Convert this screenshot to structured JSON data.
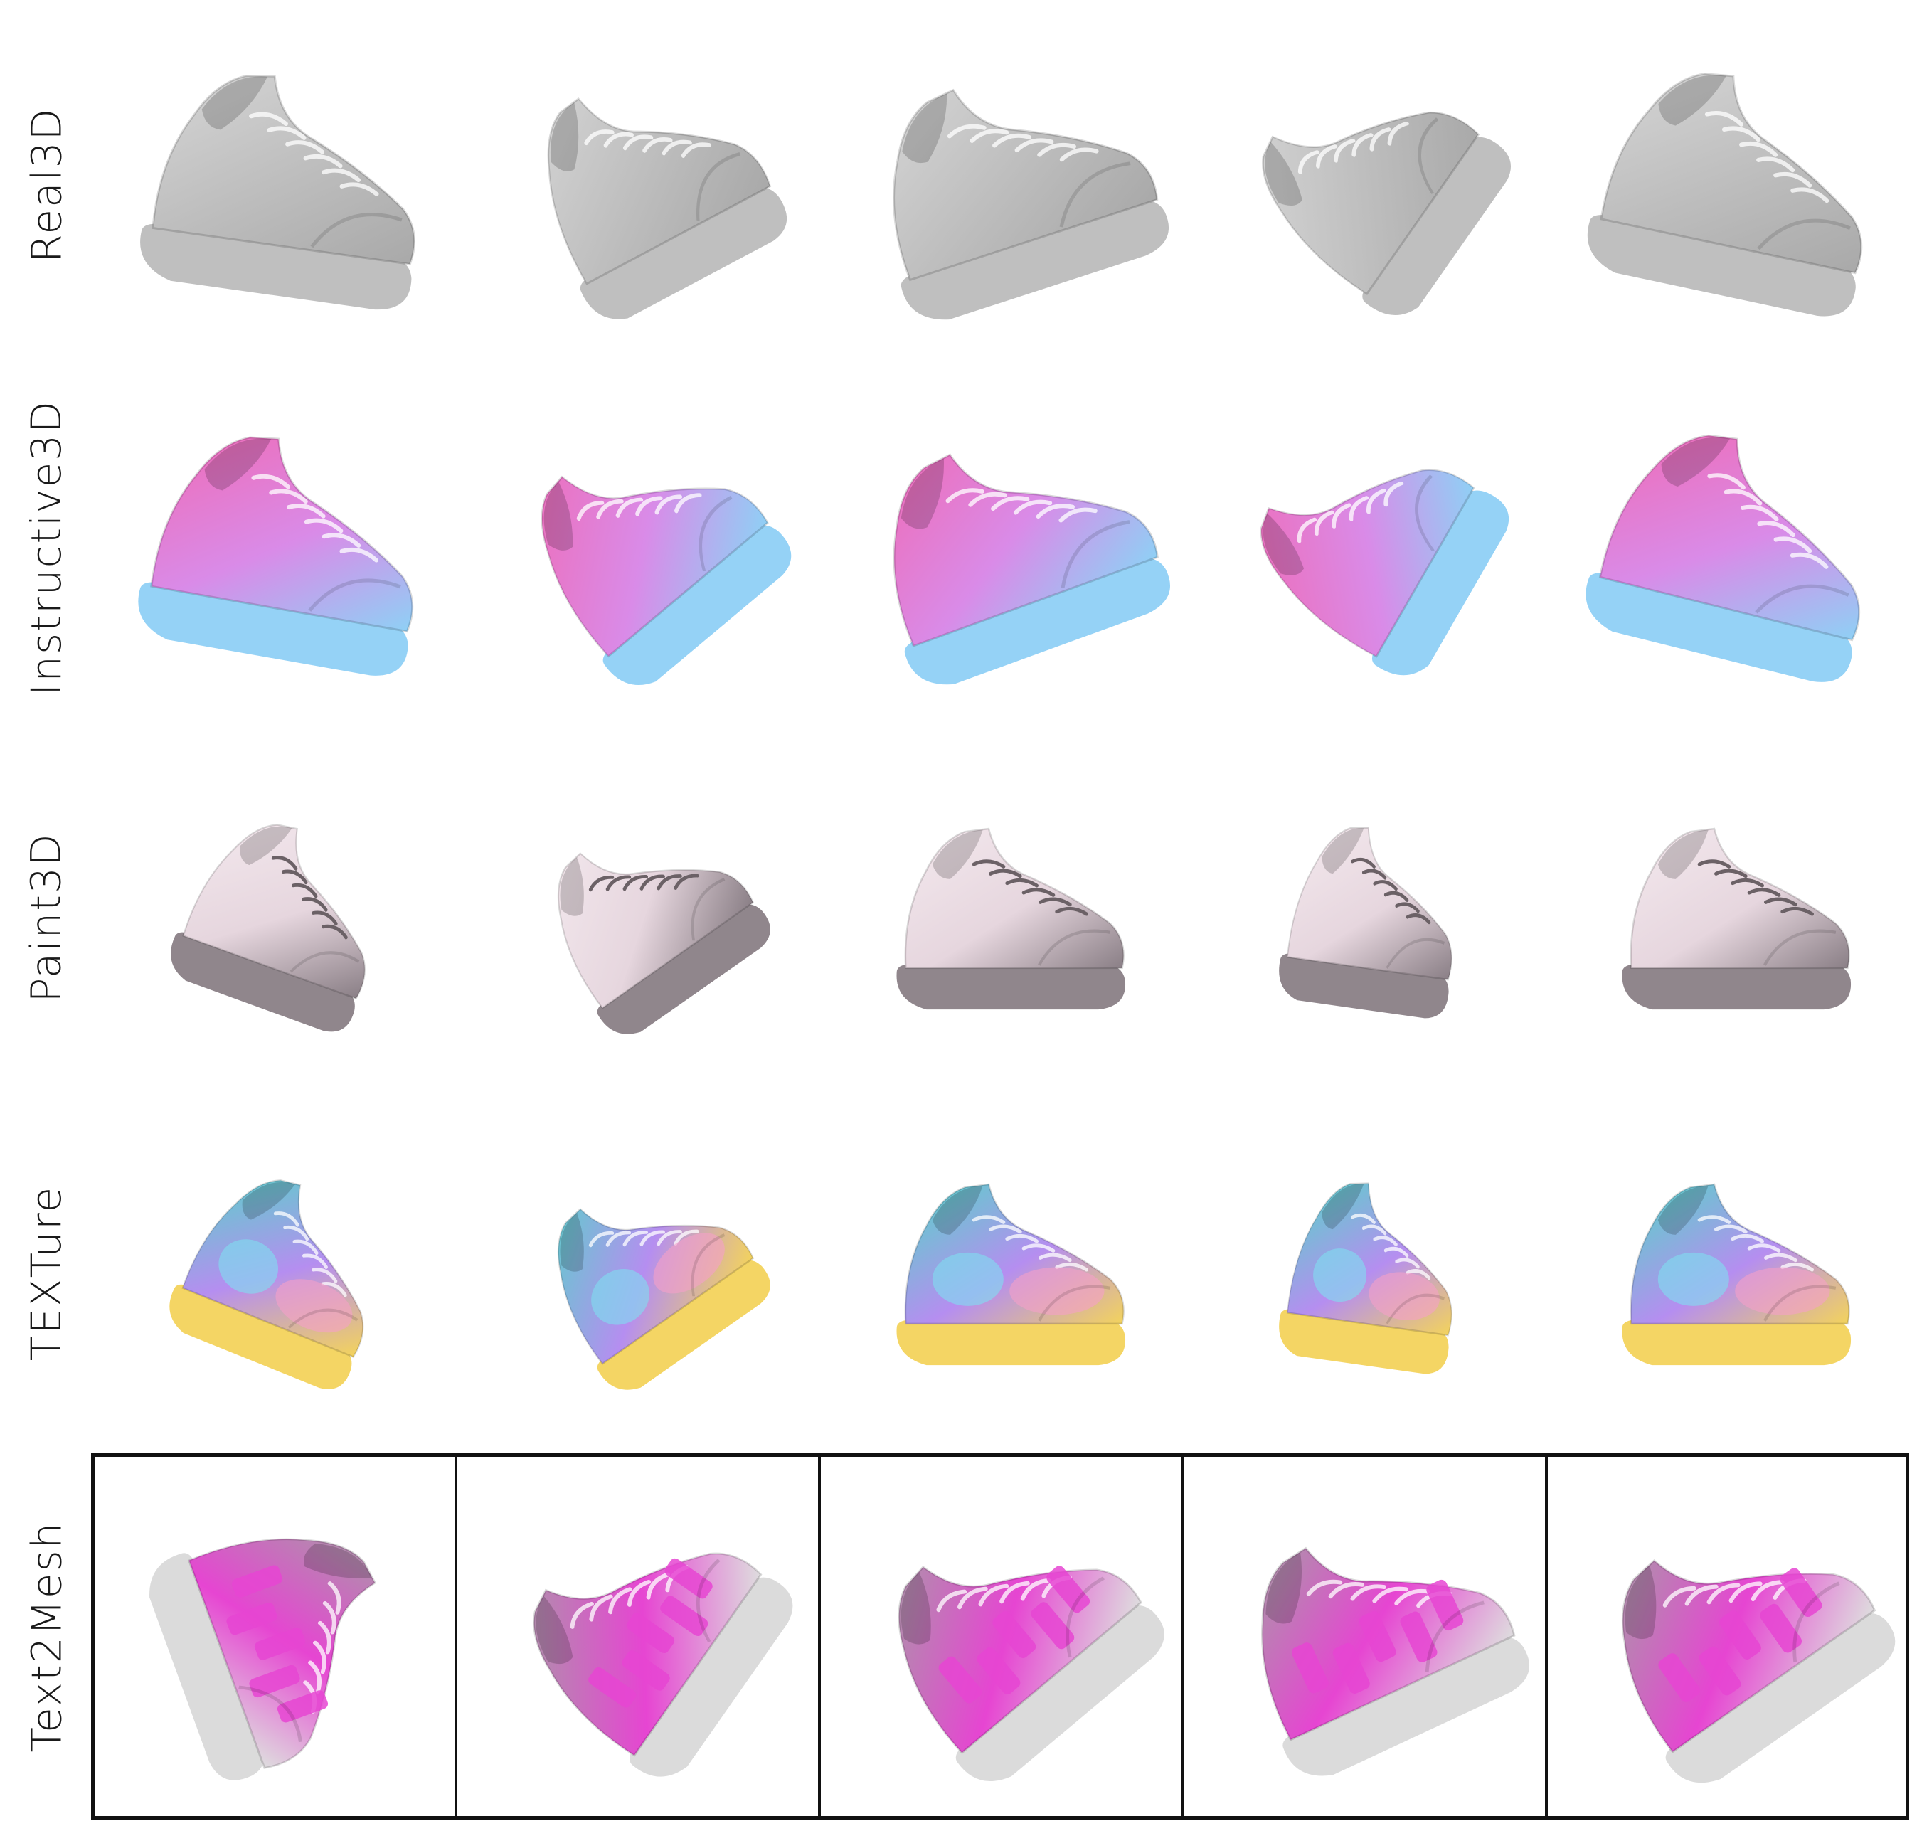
{
  "figure": {
    "rows": [
      {
        "label": "Real3D",
        "style": "gray",
        "colors": [
          "#d6d6d6",
          "#bdbdbd",
          "#a9a9a9"
        ]
      },
      {
        "label": "Instructive3D",
        "style": "pastel",
        "colors": [
          "#f06ab4",
          "#d98be8",
          "#8fd0f5"
        ]
      },
      {
        "label": "Paint3D",
        "style": "white",
        "colors": [
          "#f4e9ee",
          "#e6d6de",
          "#8a7f86"
        ]
      },
      {
        "label": "TEXTure",
        "style": "iridescent",
        "colors": [
          "#53d6c7",
          "#b58ef0",
          "#f3d35c"
        ]
      },
      {
        "label": "Text2Mesh",
        "style": "mesh",
        "colors": [
          "#a2a2a2",
          "#e645d2",
          "#dedede"
        ]
      }
    ]
  }
}
